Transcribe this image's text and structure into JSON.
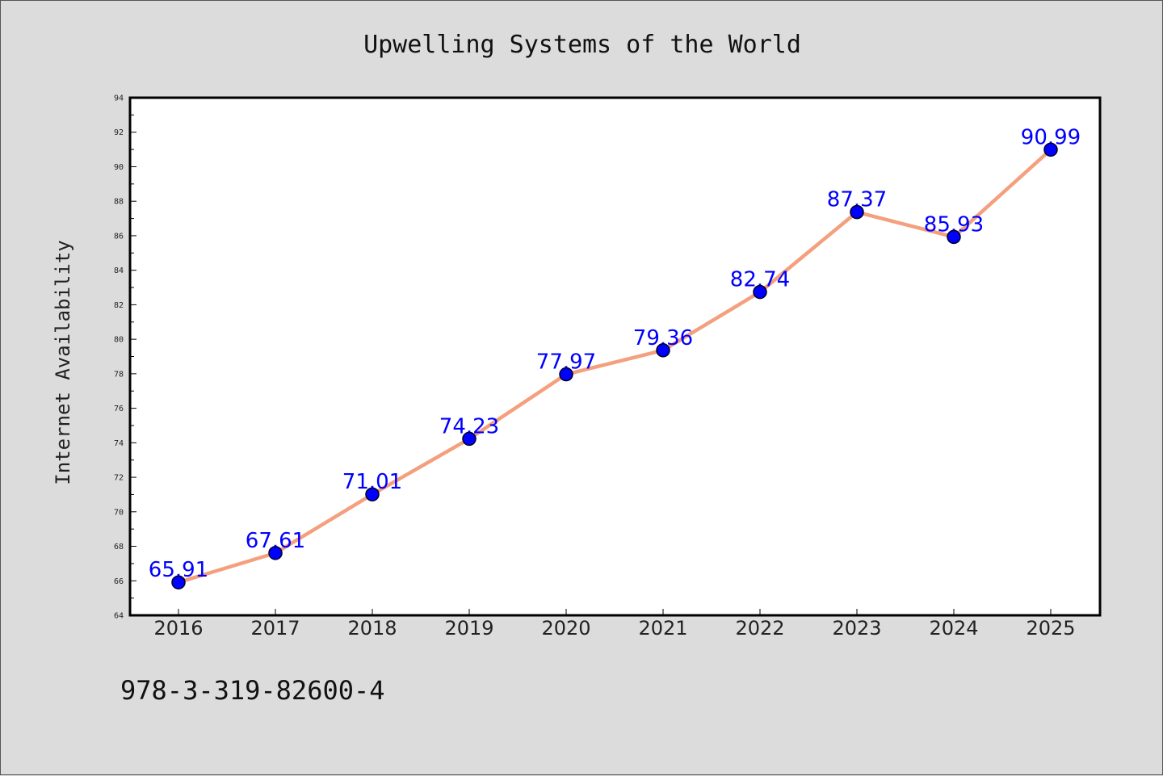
{
  "chart_data": {
    "type": "line",
    "title": "Upwelling Systems of the World",
    "ylabel": "Internet Availability",
    "xlabel": "",
    "categories": [
      "2016",
      "2017",
      "2018",
      "2019",
      "2020",
      "2021",
      "2022",
      "2023",
      "2024",
      "2025"
    ],
    "series": [
      {
        "values": [
          65.91,
          67.61,
          71.01,
          74.23,
          77.97,
          79.36,
          82.74,
          87.37,
          85.93,
          90.99
        ],
        "labels": [
          "65.91",
          "67.61",
          "71.01",
          "74.23",
          "77.97",
          "79.36",
          "82.74",
          "87.37",
          "85.93",
          "90.99"
        ],
        "line_color": "#f4a07e",
        "marker_color": "#0000ff"
      }
    ],
    "ylim": [
      64,
      94
    ],
    "yticks": [
      "64",
      "66",
      "68",
      "70",
      "72",
      "74",
      "76",
      "78",
      "80",
      "82",
      "84",
      "86",
      "88",
      "90",
      "92",
      "94"
    ],
    "grid": false,
    "legend": "none"
  },
  "footer_text": "978-3-319-82600-4"
}
